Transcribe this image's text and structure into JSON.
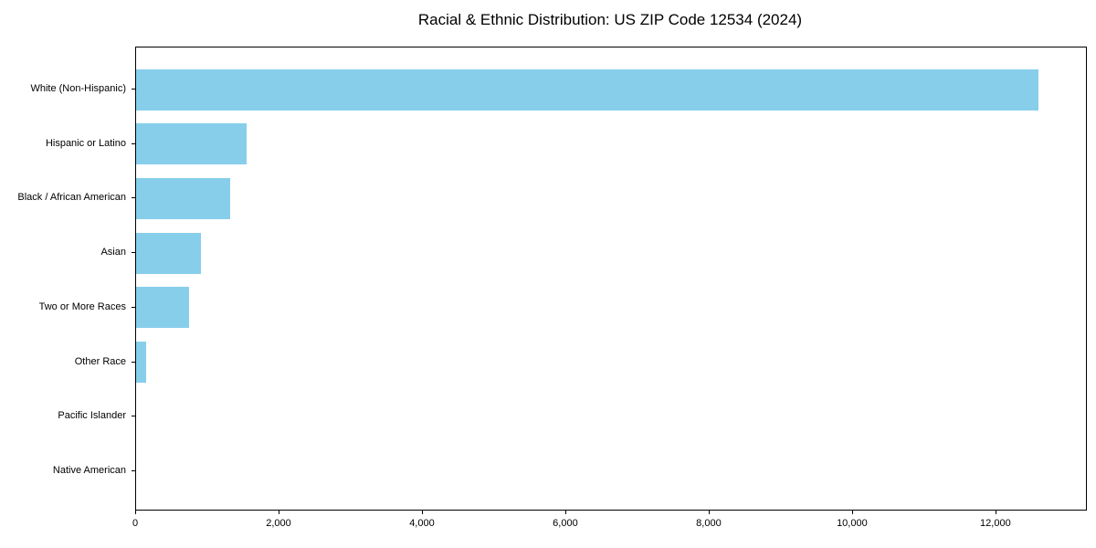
{
  "chart_data": {
    "type": "bar",
    "orientation": "horizontal",
    "title": "Racial & Ethnic Distribution: US ZIP Code 12534 (2024)",
    "categories": [
      "White (Non-Hispanic)",
      "Hispanic or Latino",
      "Black / African American",
      "Asian",
      "Two or More Races",
      "Other Race",
      "Pacific Islander",
      "Native American"
    ],
    "values": [
      12590,
      1540,
      1310,
      910,
      735,
      135,
      0,
      0
    ],
    "xlabel": "",
    "ylabel": "",
    "xlim": [
      0,
      13250
    ],
    "x_ticks": [
      {
        "value": 0,
        "label": "0"
      },
      {
        "value": 2000,
        "label": "2,000"
      },
      {
        "value": 4000,
        "label": "4,000"
      },
      {
        "value": 6000,
        "label": "6,000"
      },
      {
        "value": 8000,
        "label": "8,000"
      },
      {
        "value": 10000,
        "label": "10,000"
      },
      {
        "value": 12000,
        "label": "12,000"
      }
    ],
    "bar_color": "#87CEEB",
    "axis_color": "#000000",
    "grid": false,
    "legend": false
  }
}
